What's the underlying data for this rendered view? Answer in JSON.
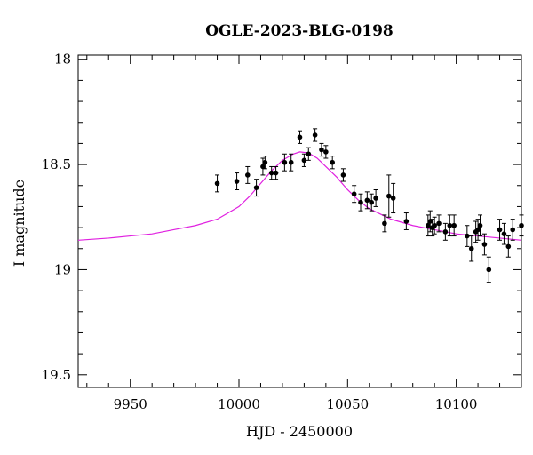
{
  "chart_data": {
    "type": "scatter",
    "title": "OGLE-2023-BLG-0198",
    "xlabel": "HJD - 2450000",
    "ylabel": "I magnitude",
    "xlim": [
      9926,
      10130
    ],
    "ylim": [
      19.56,
      17.98
    ],
    "y_inverted": true,
    "grid": false,
    "x_major_ticks": [
      9950,
      10000,
      10050,
      10100
    ],
    "x_tick_labels": [
      "9950",
      "10000",
      "10050",
      "10100"
    ],
    "x_minor_step": 10,
    "y_major_ticks": [
      18,
      18.5,
      19,
      19.5
    ],
    "y_tick_labels": [
      "18",
      "18.5",
      "19",
      "19.5"
    ],
    "y_minor_step": 0.1,
    "colors": {
      "model": "#e020e0",
      "points": "#000000"
    },
    "model": {
      "name": "",
      "x": [
        9926,
        9940,
        9950,
        9960,
        9970,
        9980,
        9990,
        10000,
        10005,
        10010,
        10015,
        10020,
        10025,
        10028,
        10032,
        10036,
        10040,
        10045,
        10050,
        10055,
        10060,
        10070,
        10080,
        10090,
        10100,
        10110,
        10120,
        10130
      ],
      "y": [
        18.86,
        18.85,
        18.84,
        18.83,
        18.81,
        18.79,
        18.76,
        18.7,
        18.65,
        18.59,
        18.53,
        18.48,
        18.45,
        18.44,
        18.445,
        18.47,
        18.51,
        18.56,
        18.62,
        18.67,
        18.71,
        18.76,
        18.79,
        18.81,
        18.83,
        18.84,
        18.85,
        18.86
      ]
    },
    "points": {
      "x": [
        9990,
        9999,
        10004,
        10008,
        10011,
        10012,
        10015,
        10017,
        10021,
        10024,
        10028,
        10030,
        10032,
        10035,
        10038,
        10040,
        10043,
        10048,
        10053,
        10056,
        10059,
        10061,
        10063,
        10067,
        10069,
        10071,
        10077,
        10087,
        10088,
        10089,
        10090,
        10092,
        10095,
        10097,
        10099,
        10105,
        10107,
        10109,
        10110,
        10111,
        10113,
        10115,
        10120,
        10122,
        10124,
        10126,
        10130
      ],
      "y": [
        18.59,
        18.58,
        18.55,
        18.61,
        18.51,
        18.49,
        18.54,
        18.54,
        18.49,
        18.49,
        18.37,
        18.48,
        18.45,
        18.36,
        18.43,
        18.44,
        18.49,
        18.55,
        18.64,
        18.68,
        18.67,
        18.68,
        18.66,
        18.78,
        18.65,
        18.66,
        18.77,
        18.79,
        18.77,
        18.8,
        18.79,
        18.78,
        18.82,
        18.79,
        18.79,
        18.84,
        18.9,
        18.82,
        18.81,
        18.79,
        18.88,
        19.0,
        18.81,
        18.83,
        18.89,
        18.81,
        18.79
      ],
      "err": [
        0.04,
        0.04,
        0.04,
        0.04,
        0.04,
        0.03,
        0.03,
        0.03,
        0.04,
        0.04,
        0.03,
        0.03,
        0.03,
        0.03,
        0.03,
        0.03,
        0.03,
        0.03,
        0.04,
        0.04,
        0.04,
        0.04,
        0.04,
        0.04,
        0.1,
        0.07,
        0.04,
        0.05,
        0.05,
        0.04,
        0.04,
        0.04,
        0.04,
        0.05,
        0.05,
        0.05,
        0.06,
        0.05,
        0.05,
        0.05,
        0.05,
        0.06,
        0.05,
        0.05,
        0.05,
        0.05,
        0.05
      ]
    }
  }
}
